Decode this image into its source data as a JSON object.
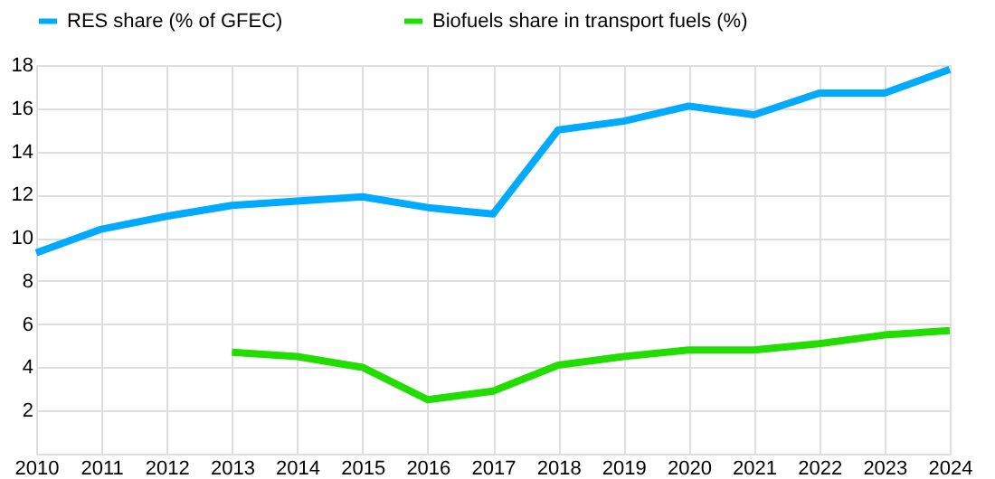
{
  "chart_data": {
    "type": "line",
    "categories": [
      "2010",
      "2011",
      "2012",
      "2013",
      "2014",
      "2015",
      "2016",
      "2017",
      "2018",
      "2019",
      "2020",
      "2021",
      "2022",
      "2023",
      "2024"
    ],
    "series": [
      {
        "name": "RES share (% of GFEC)",
        "color": "#00aaff",
        "values": [
          9.3,
          10.4,
          11.0,
          11.5,
          11.7,
          11.9,
          11.4,
          11.1,
          15.0,
          15.4,
          16.1,
          15.7,
          16.7,
          16.7,
          17.8
        ]
      },
      {
        "name": "Biofuels share in transport fuels (%)",
        "color": "#22dd00",
        "values": [
          null,
          null,
          null,
          4.7,
          4.5,
          4.0,
          2.5,
          2.9,
          4.1,
          4.5,
          4.8,
          4.8,
          5.1,
          5.5,
          5.7
        ]
      }
    ],
    "ylim": [
      0,
      18
    ],
    "yticks": [
      {
        "value": 0,
        "label": null
      },
      2,
      4,
      6,
      8,
      10,
      12,
      14,
      16,
      18
    ],
    "grid": true,
    "legend": "top",
    "marker": "none",
    "line_style": "solid"
  }
}
